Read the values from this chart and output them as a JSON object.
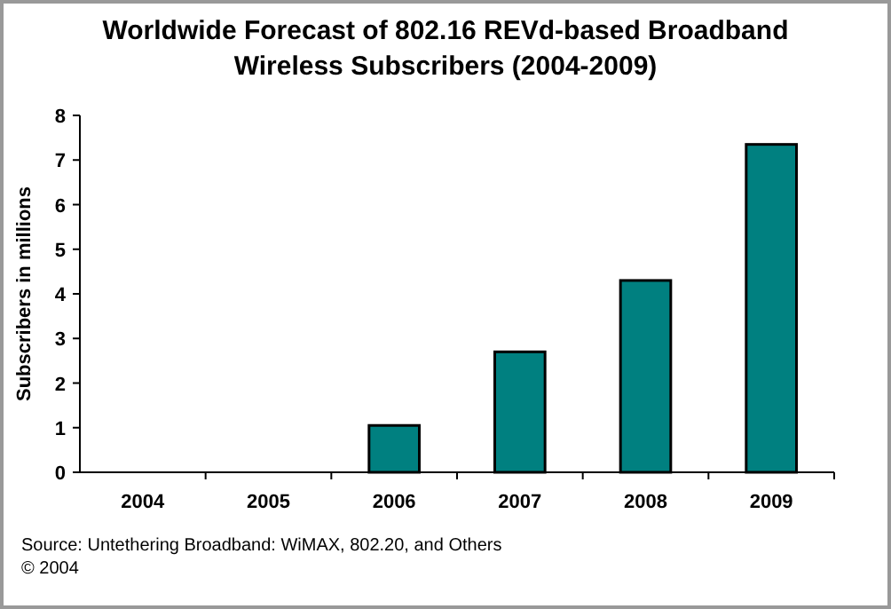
{
  "chart_data": {
    "type": "bar",
    "title": "Worldwide Forecast of 802.16 REVd-based Broadband Wireless Subscribers (2004-2009)",
    "ylabel": "Subscribers in millions",
    "categories": [
      "2004",
      "2005",
      "2006",
      "2007",
      "2008",
      "2009"
    ],
    "values": [
      0,
      0,
      1.05,
      2.7,
      4.3,
      7.35
    ],
    "color": "#008080",
    "ylim": [
      0,
      8
    ],
    "yticks": [
      0,
      1,
      2,
      3,
      4,
      5,
      6,
      7,
      8
    ],
    "grid": false,
    "annotations": [
      "Source: Untethering Broadband: WiMAX, 802.20, and Others",
      "© 2004"
    ]
  }
}
